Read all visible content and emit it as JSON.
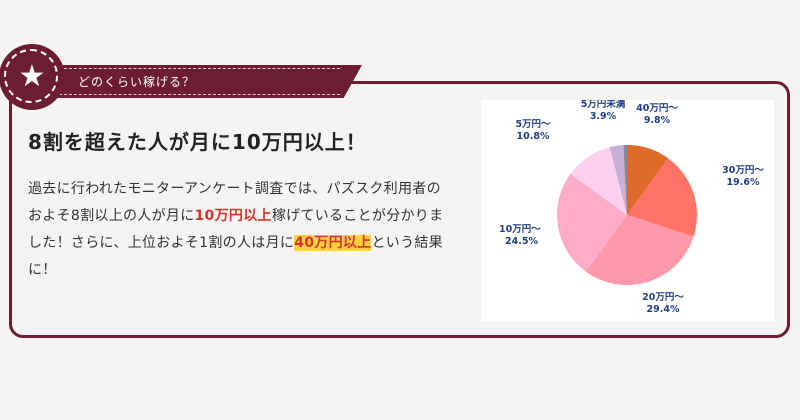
{
  "section": {
    "ribbon_label": "どのくらい稼げる？",
    "headline": "8割を超えた人が月に10万円以上！",
    "body": {
      "part1": "過去に行われたモニターアンケート調査では、パズスク利用者のおよそ8割以上の人が月に",
      "em1": "10万円以上",
      "part2": "稼げていることが分かりました！さらに、上位およそ1割の人は月に",
      "em2": "40万円以上",
      "part3": "という結果に！"
    }
  },
  "colors": {
    "accent": "#6d1d33",
    "label_text": "#1f3f8a",
    "emphasis": "#d6342d",
    "highlight": "#ffd23a"
  },
  "chart_data": {
    "type": "pie",
    "slices": [
      {
        "label": "40万円～",
        "value": 9.8,
        "value_label": "9.8%",
        "color": "#e06a2a"
      },
      {
        "label": "30万円～",
        "value": 19.6,
        "value_label": "19.6%",
        "color": "#ff7467"
      },
      {
        "label": "20万円～",
        "value": 29.4,
        "value_label": "29.4%",
        "color": "#ff98a8"
      },
      {
        "label": "10万円～",
        "value": 24.5,
        "value_label": "24.5%",
        "color": "#ffaccb"
      },
      {
        "label": "5万円～",
        "value": 10.8,
        "value_label": "10.8%",
        "color": "#fdd1ed"
      },
      {
        "label": "5万円未満",
        "value": 3.9,
        "value_label": "3.9%",
        "color": "#c7b0d8"
      }
    ],
    "start": "top",
    "direction": "clockwise"
  }
}
